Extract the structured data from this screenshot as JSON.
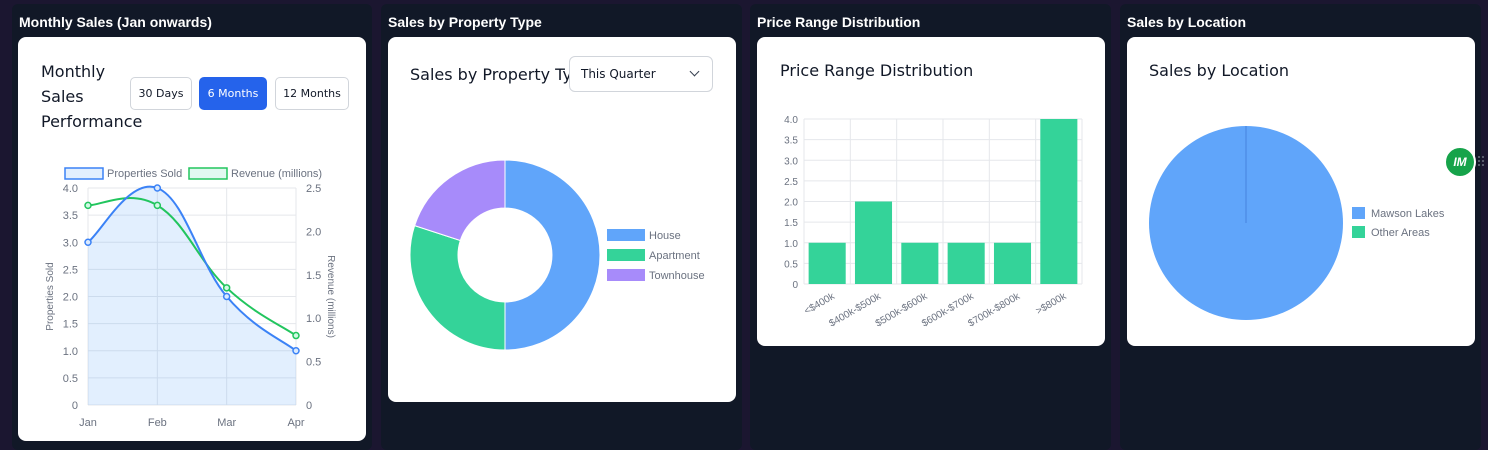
{
  "panels": {
    "monthly": {
      "title": "Monthly Sales (Jan onwards)"
    },
    "property": {
      "title": "Sales by Property Type"
    },
    "price": {
      "title": "Price Range Distribution"
    },
    "location": {
      "title": "Sales by Location"
    }
  },
  "monthly_card": {
    "title_lines": [
      "Monthly",
      "Sales",
      "Performance"
    ],
    "buttons": [
      "30 Days",
      "6 Months",
      "12 Months"
    ],
    "active_button": "6 Months"
  },
  "property_card": {
    "title": "Sales by Property Type",
    "select_value": "This Quarter"
  },
  "price_card": {
    "title": "Price Range Distribution"
  },
  "location_card": {
    "title": "Sales by Location"
  },
  "floating_badge": {
    "label": "IM",
    "icon": "im-logo-icon"
  },
  "colors": {
    "blue": "#60a5fa",
    "green": "#34d399",
    "purple": "#a78bfa",
    "blue_line": "#3b82f6",
    "green_line": "#22c55e"
  },
  "chart_data": [
    {
      "type": "line",
      "categories": [
        "Jan",
        "Feb",
        "Mar",
        "Apr"
      ],
      "series": [
        {
          "name": "Properties Sold",
          "values": [
            3,
            4,
            2,
            1
          ],
          "axis": "left",
          "fill": true
        },
        {
          "name": "Revenue (millions)",
          "values": [
            2.3,
            2.3,
            1.35,
            0.8
          ],
          "axis": "right",
          "fill": false
        }
      ],
      "ylabel": "Properties Sold",
      "y2label": "Revenue (millions)",
      "ylim": [
        0,
        4
      ],
      "y_ticks": [
        "0",
        "0.5",
        "1.0",
        "1.5",
        "2.0",
        "2.5",
        "3.0",
        "3.5",
        "4.0"
      ],
      "y2lim": [
        0,
        2.5
      ],
      "y2_ticks": [
        "0",
        "0.5",
        "1.0",
        "1.5",
        "2.0",
        "2.5"
      ],
      "legend": "top",
      "grid": true
    },
    {
      "type": "pie",
      "variant": "doughnut",
      "labels": [
        "House",
        "Apartment",
        "Townhouse"
      ],
      "values": [
        50,
        30,
        20
      ],
      "legend": "right"
    },
    {
      "type": "bar",
      "categories": [
        "<$400k",
        "$400k-$500k",
        "$500k-$600k",
        "$600k-$700k",
        "$700k-$800k",
        ">$800k"
      ],
      "values": [
        1,
        2,
        1,
        1,
        1,
        4
      ],
      "ylim": [
        0,
        4
      ],
      "y_ticks": [
        "0",
        "0.5",
        "1.0",
        "1.5",
        "2.0",
        "2.5",
        "3.0",
        "3.5",
        "4.0"
      ],
      "grid": true
    },
    {
      "type": "pie",
      "labels": [
        "Mawson Lakes",
        "Other Areas"
      ],
      "values": [
        100,
        0
      ],
      "legend": "right"
    }
  ]
}
